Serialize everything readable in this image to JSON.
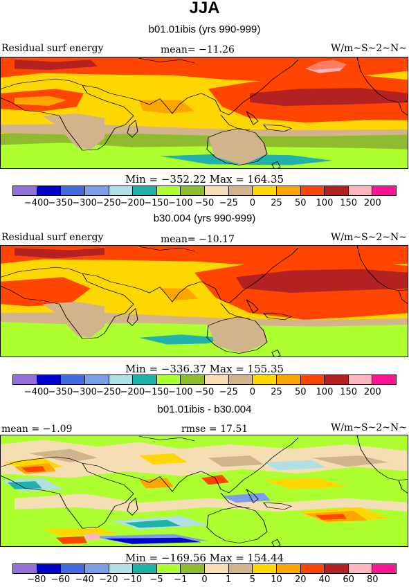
{
  "title": "JJA",
  "units": "W/m~S~2~N~",
  "panels": [
    {
      "subtitle": "b01.01ibis (yrs 990-999)",
      "field_label": "Residual surf energy",
      "stat_left": "",
      "stat_mid": "mean= −11.26",
      "units": "W/m~S~2~N~",
      "minmax": "Min = −352.22 Max = 164.35",
      "levels": [
        "−400",
        "−350",
        "−300",
        "−250",
        "−200",
        "−150",
        "−100",
        "−50",
        "−25",
        "0",
        "25",
        "50",
        "100",
        "150",
        "200"
      ]
    },
    {
      "subtitle": "b30.004 (yrs 990-999)",
      "field_label": "Residual surf energy",
      "stat_left": "",
      "stat_mid": "mean= −10.17",
      "units": "W/m~S~2~N~",
      "minmax": "Min = −336.37 Max = 155.35",
      "levels": [
        "−400",
        "−350",
        "−300",
        "−250",
        "−200",
        "−150",
        "−100",
        "−50",
        "−25",
        "0",
        "25",
        "50",
        "100",
        "150",
        "200"
      ]
    },
    {
      "subtitle": "b01.01ibis - b30.004",
      "field_label": "",
      "stat_left": "mean =  −1.09",
      "stat_mid": "rmse =  17.51",
      "units": "W/m~S~2~N~",
      "minmax": "Min = −169.56 Max = 154.44",
      "levels": [
        "−80",
        "−60",
        "−40",
        "−20",
        "−10",
        "−5",
        "−1",
        "0",
        "1",
        "5",
        "10",
        "20",
        "40",
        "60",
        "80"
      ]
    }
  ],
  "colorbar_colors": [
    "#9370db",
    "#0000cd",
    "#4169e1",
    "#7b9ee8",
    "#b0e0e6",
    "#20b2aa",
    "#adff2f",
    "#8fbc2f",
    "#f5deb3",
    "#d2b48c",
    "#ffd700",
    "#ffa500",
    "#ff4500",
    "#b22222",
    "#ffb6c1",
    "#ff1493"
  ]
}
